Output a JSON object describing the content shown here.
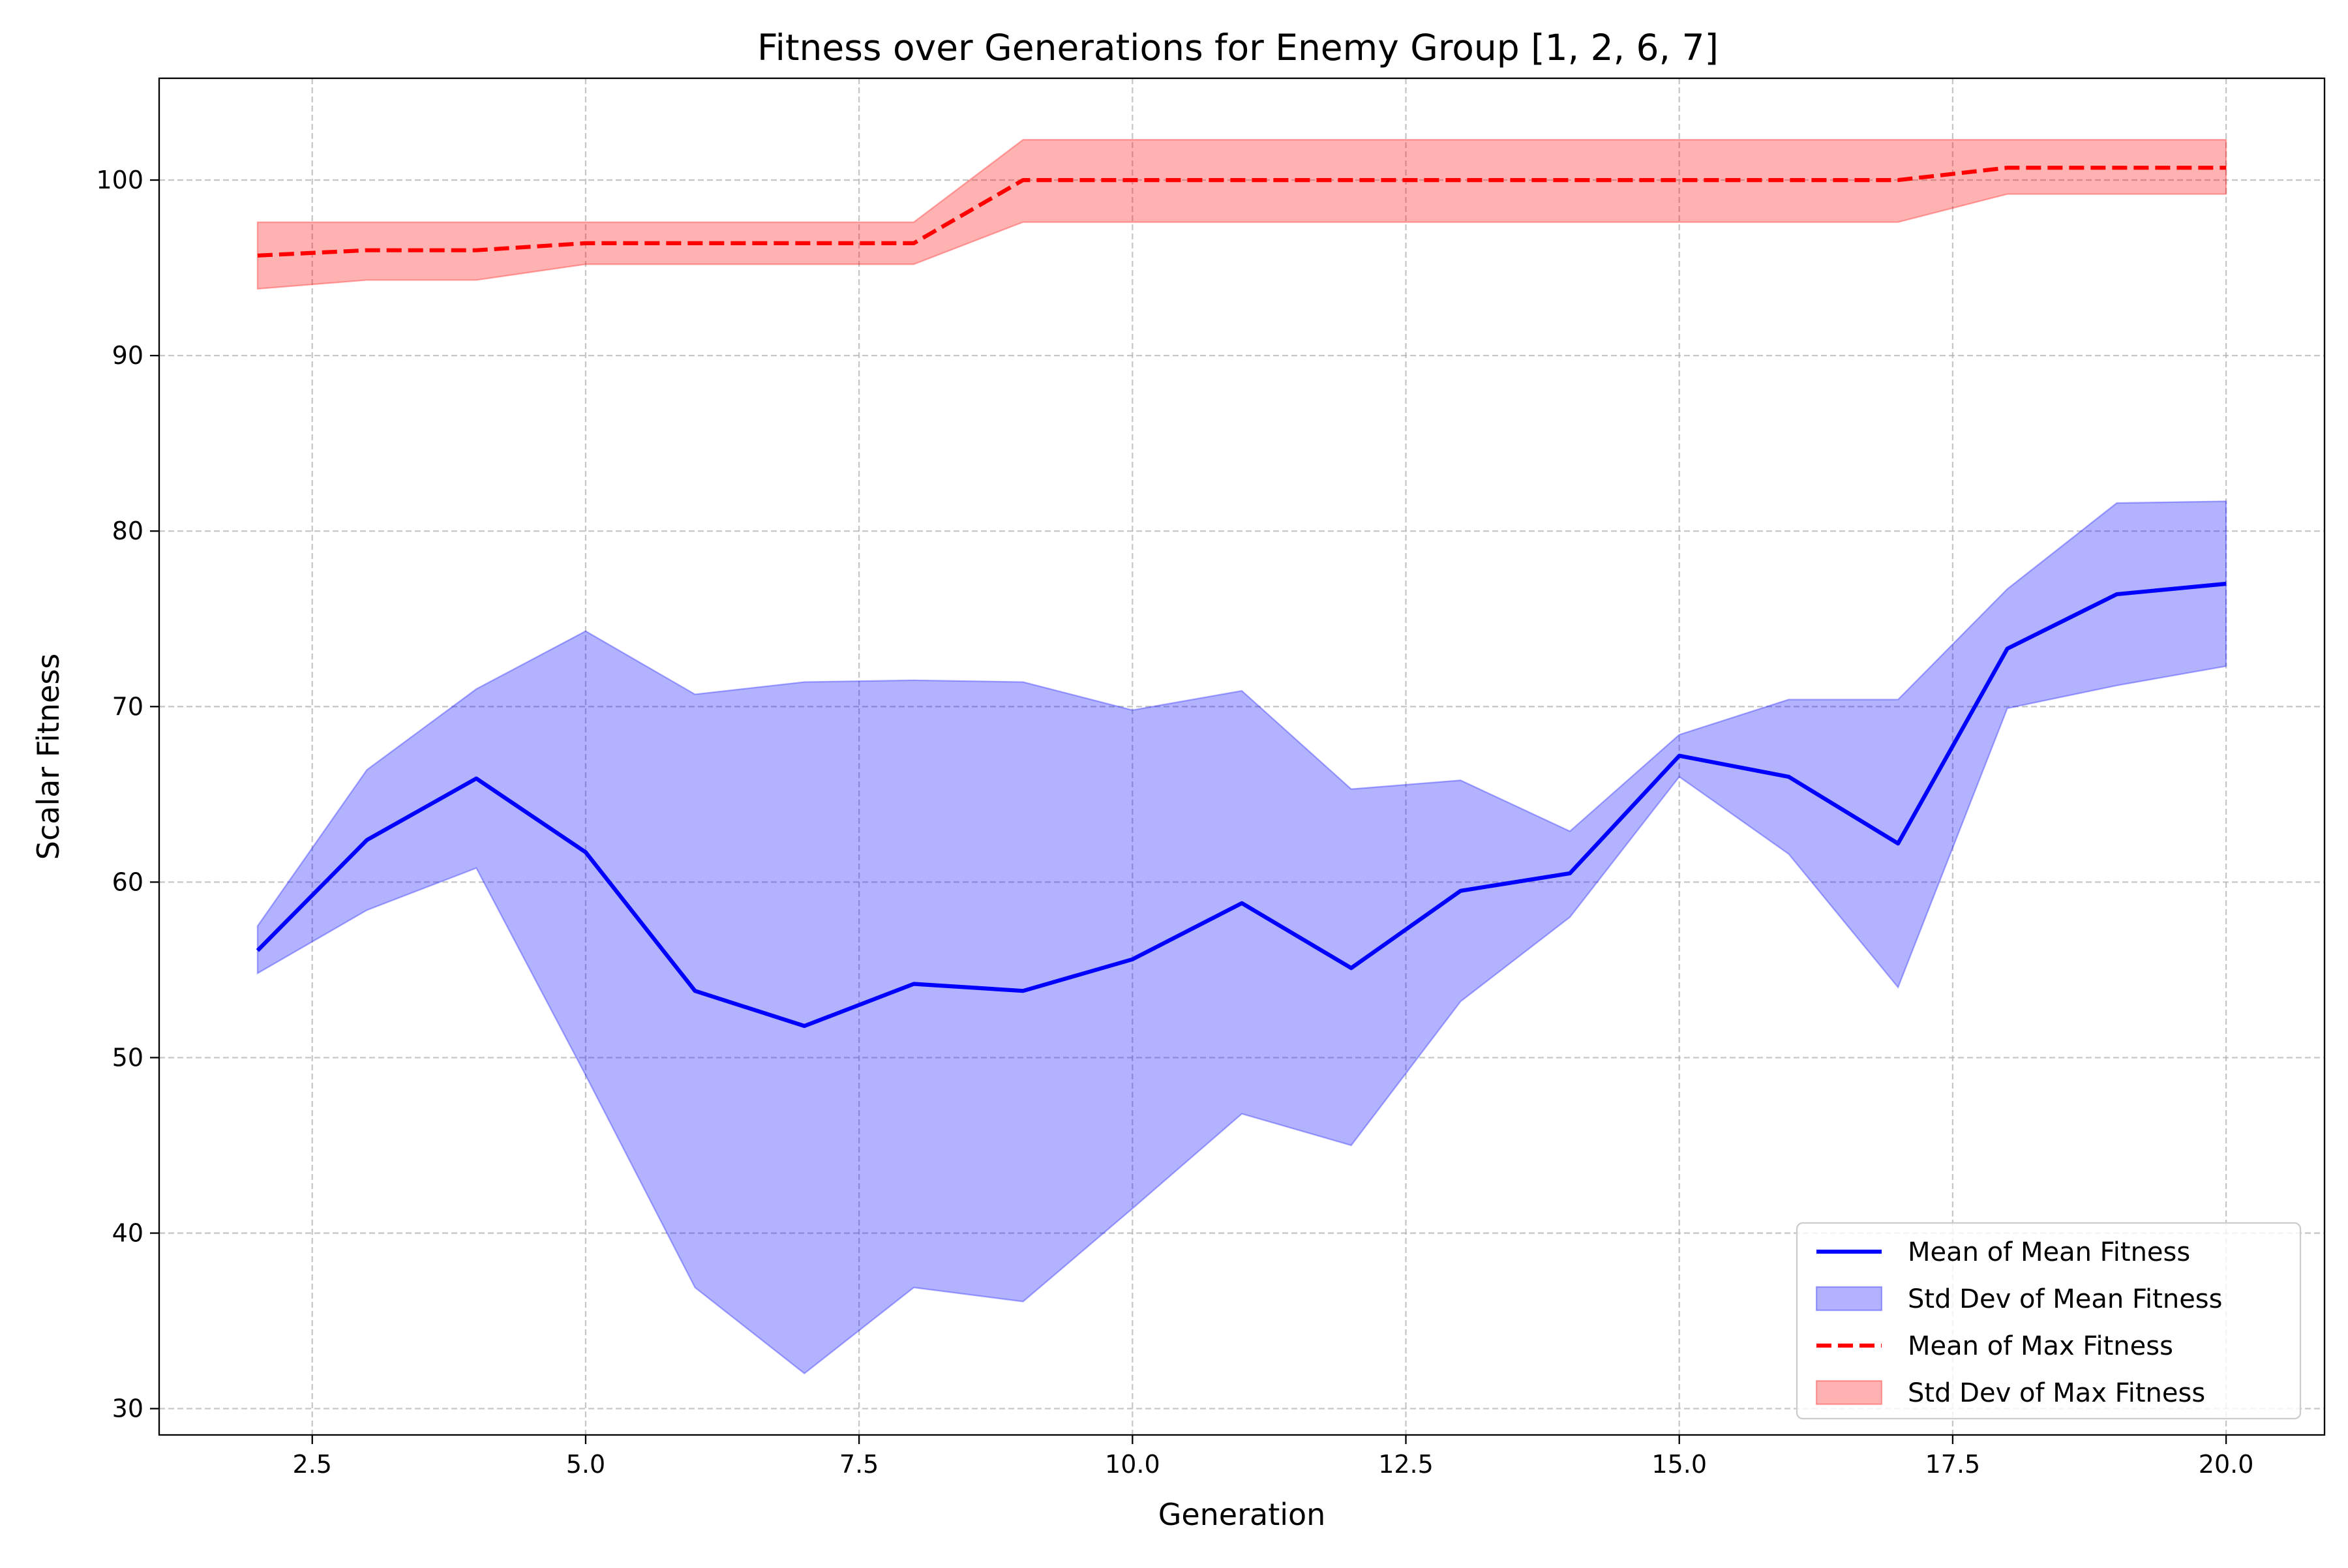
{
  "chart_data": {
    "type": "line",
    "title": "Fitness over Generations for Enemy Group [1, 2, 6, 7]",
    "xlabel": "Generation",
    "ylabel": "Scalar Fitness",
    "xlim": [
      1.1,
      20.9
    ],
    "ylim": [
      28.5,
      105.8
    ],
    "x_ticks": [
      2.5,
      5.0,
      7.5,
      10.0,
      12.5,
      15.0,
      17.5,
      20.0
    ],
    "x_tick_labels": [
      "2.5",
      "5.0",
      "7.5",
      "10.0",
      "12.5",
      "15.0",
      "17.5",
      "20.0"
    ],
    "y_ticks": [
      30,
      40,
      50,
      60,
      70,
      80,
      90,
      100
    ],
    "y_tick_labels": [
      "30",
      "40",
      "50",
      "60",
      "70",
      "80",
      "90",
      "100"
    ],
    "grid": true,
    "legend_position": "bottom-right",
    "x": [
      2,
      3,
      4,
      5,
      6,
      7,
      8,
      9,
      10,
      11,
      12,
      13,
      14,
      15,
      16,
      17,
      18,
      19,
      20
    ],
    "series": [
      {
        "name": "Mean of Mean Fitness",
        "kind": "line",
        "style": "solid",
        "color": "#0000ff",
        "values": [
          56.1,
          62.4,
          65.9,
          61.7,
          53.8,
          51.8,
          54.2,
          53.8,
          55.6,
          58.8,
          55.1,
          59.5,
          60.5,
          67.2,
          66.0,
          62.2,
          73.3,
          76.4,
          77.0
        ]
      },
      {
        "name": "Std Dev of Mean Fitness",
        "kind": "band",
        "color": "#0000ff",
        "opacity": 0.3,
        "lower": [
          54.8,
          58.4,
          60.8,
          49.0,
          36.9,
          32.0,
          36.9,
          36.1,
          41.4,
          46.8,
          45.0,
          53.2,
          58.0,
          66.0,
          61.6,
          54.0,
          69.9,
          71.2,
          72.3
        ],
        "upper": [
          57.5,
          66.4,
          71.0,
          74.3,
          70.7,
          71.4,
          71.5,
          71.4,
          69.8,
          70.9,
          65.3,
          65.8,
          62.9,
          68.4,
          70.4,
          70.4,
          76.7,
          81.6,
          81.7
        ]
      },
      {
        "name": "Mean of Max Fitness",
        "kind": "line",
        "style": "dashed",
        "color": "#ff0000",
        "values": [
          95.7,
          96.0,
          96.0,
          96.4,
          96.4,
          96.4,
          96.4,
          100.0,
          100.0,
          100.0,
          100.0,
          100.0,
          100.0,
          100.0,
          100.0,
          100.0,
          100.7,
          100.7,
          100.7
        ]
      },
      {
        "name": "Std Dev of Max Fitness",
        "kind": "band",
        "color": "#ff0000",
        "opacity": 0.3,
        "lower": [
          93.8,
          94.3,
          94.3,
          95.2,
          95.2,
          95.2,
          95.2,
          97.6,
          97.6,
          97.6,
          97.6,
          97.6,
          97.6,
          97.6,
          97.6,
          97.6,
          99.2,
          99.2,
          99.2
        ],
        "upper": [
          97.6,
          97.6,
          97.6,
          97.6,
          97.6,
          97.6,
          97.6,
          102.3,
          102.3,
          102.3,
          102.3,
          102.3,
          102.3,
          102.3,
          102.3,
          102.3,
          102.3,
          102.3,
          102.3
        ]
      }
    ],
    "legend_order": [
      0,
      1,
      2,
      3
    ]
  }
}
